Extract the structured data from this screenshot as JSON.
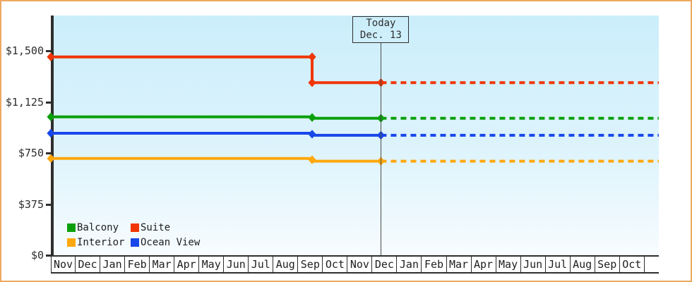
{
  "frame": {
    "border_color": "#eda961"
  },
  "chart_data": {
    "type": "line",
    "title": "",
    "xlabel": "",
    "ylabel": "",
    "grid": false,
    "x_axis": {
      "months": [
        "Nov",
        "Dec",
        "Jan",
        "Feb",
        "Mar",
        "Apr",
        "May",
        "Jun",
        "Jul",
        "Aug",
        "Sep",
        "Oct",
        "Nov",
        "Dec",
        "Jan",
        "Feb",
        "Mar",
        "Apr",
        "May",
        "Jun",
        "Jul",
        "Aug",
        "Sep",
        "Oct"
      ]
    },
    "y_axis": {
      "min": 0,
      "max": 1500,
      "ticks": [
        {
          "label": "$0",
          "value": 0
        },
        {
          "label": "$375",
          "value": 375
        },
        {
          "label": "$750",
          "value": 750
        },
        {
          "label": "$1,125",
          "value": 1125
        },
        {
          "label": "$1,500",
          "value": 1500
        }
      ]
    },
    "today": {
      "line1": "Today",
      "line2": "Dec. 13",
      "m": 13.34
    },
    "end_m": 24.57,
    "series": [
      {
        "name": "Suite",
        "color": "#f03605",
        "solid": [
          [
            0,
            1455
          ],
          [
            10.56,
            1455
          ],
          [
            10.56,
            1266
          ],
          [
            13.34,
            1266
          ]
        ],
        "dashed": [
          [
            13.34,
            1266
          ],
          [
            24.57,
            1266
          ]
        ],
        "markers": [
          [
            0,
            1455
          ],
          [
            10.56,
            1455
          ],
          [
            10.56,
            1266
          ],
          [
            13.34,
            1266
          ]
        ]
      },
      {
        "name": "Balcony",
        "color": "#0ba00b",
        "solid": [
          [
            0,
            1015
          ],
          [
            10.56,
            1015
          ],
          [
            10.56,
            1005
          ],
          [
            13.34,
            1005
          ]
        ],
        "dashed": [
          [
            13.34,
            1005
          ],
          [
            24.57,
            1005
          ]
        ],
        "markers": [
          [
            0,
            1015
          ],
          [
            10.56,
            1010
          ],
          [
            13.34,
            1005
          ]
        ]
      },
      {
        "name": "Ocean View",
        "color": "#1847ea",
        "solid": [
          [
            0,
            895
          ],
          [
            10.56,
            895
          ],
          [
            10.56,
            880
          ],
          [
            13.34,
            880
          ]
        ],
        "dashed": [
          [
            13.34,
            880
          ],
          [
            24.57,
            880
          ]
        ],
        "markers": [
          [
            0,
            895
          ],
          [
            10.56,
            888
          ],
          [
            13.34,
            880
          ]
        ]
      },
      {
        "name": "Interior",
        "color": "#ffa80d",
        "solid": [
          [
            0,
            710
          ],
          [
            10.56,
            710
          ],
          [
            10.56,
            690
          ],
          [
            13.34,
            690
          ]
        ],
        "dashed": [
          [
            13.34,
            690
          ],
          [
            24.57,
            690
          ]
        ],
        "markers": [
          [
            0,
            710
          ],
          [
            10.56,
            700
          ],
          [
            13.34,
            690
          ]
        ]
      }
    ],
    "legend": {
      "rows": [
        [
          {
            "label": "Balcony",
            "color": "#0ba00b"
          },
          {
            "label": "Suite",
            "color": "#f03605"
          }
        ],
        [
          {
            "label": "Interior",
            "color": "#ffa80d"
          },
          {
            "label": "Ocean View",
            "color": "#1847ea"
          }
        ]
      ]
    }
  }
}
